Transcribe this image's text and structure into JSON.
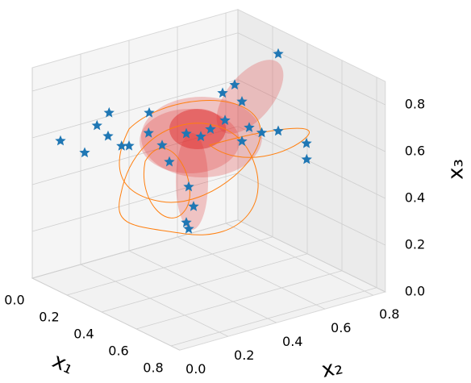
{
  "chart_data": {
    "type": "scatter3d",
    "xlabel": "x₁",
    "ylabel": "x₂",
    "zlabel": "x₃",
    "xlim": [
      0,
      0.85
    ],
    "ylim": [
      0,
      0.85
    ],
    "zlim": [
      0,
      0.9
    ],
    "xticks": [
      {
        "value": 0,
        "label": "0.0"
      },
      0.2,
      0.4,
      0.6,
      0.8
    ],
    "yticks": [
      {
        "value": 0,
        "label": "0.0"
      },
      0.2,
      0.4,
      0.6,
      0.8
    ],
    "zticks": [
      {
        "value": 0,
        "label": "0.0"
      },
      0.2,
      0.4,
      0.6,
      0.8
    ],
    "grid": true,
    "color": "#1f77b4",
    "points": {
      "x1": [
        0.1,
        0.1,
        0.15,
        0.15,
        0.2,
        0.25,
        0.3,
        0.2,
        0.4,
        0.4,
        0.4,
        0.4,
        0.4,
        0.4,
        0.5,
        0.55,
        0.5,
        0.4,
        0.4,
        0.4,
        0.4,
        0.4,
        0.4,
        0.4,
        0.4,
        0.4,
        0.35,
        0.4,
        0.4
      ],
      "x2": [
        0.045,
        0.145,
        0.16,
        0.21,
        0.17,
        0.19,
        0.185,
        0.34,
        0.73,
        0.5,
        0.55,
        0.58,
        0.61,
        0.73,
        0.775,
        0.74,
        0.59,
        0.35,
        0.41,
        0.45,
        0.25,
        0.28,
        0.36,
        0.38,
        0.35,
        0.36,
        0.23,
        0.51,
        0.58
      ],
      "x3": [
        0.61,
        0.53,
        0.66,
        0.7,
        0.63,
        0.6,
        0.62,
        0.68,
        0.89,
        0.79,
        0.81,
        0.73,
        0.61,
        0.56,
        0.53,
        0.49,
        0.63,
        0.66,
        0.63,
        0.65,
        0.64,
        0.56,
        0.43,
        0.34,
        0.28,
        0.25,
        0.68,
        0.67,
        0.56
      ]
    }
  }
}
